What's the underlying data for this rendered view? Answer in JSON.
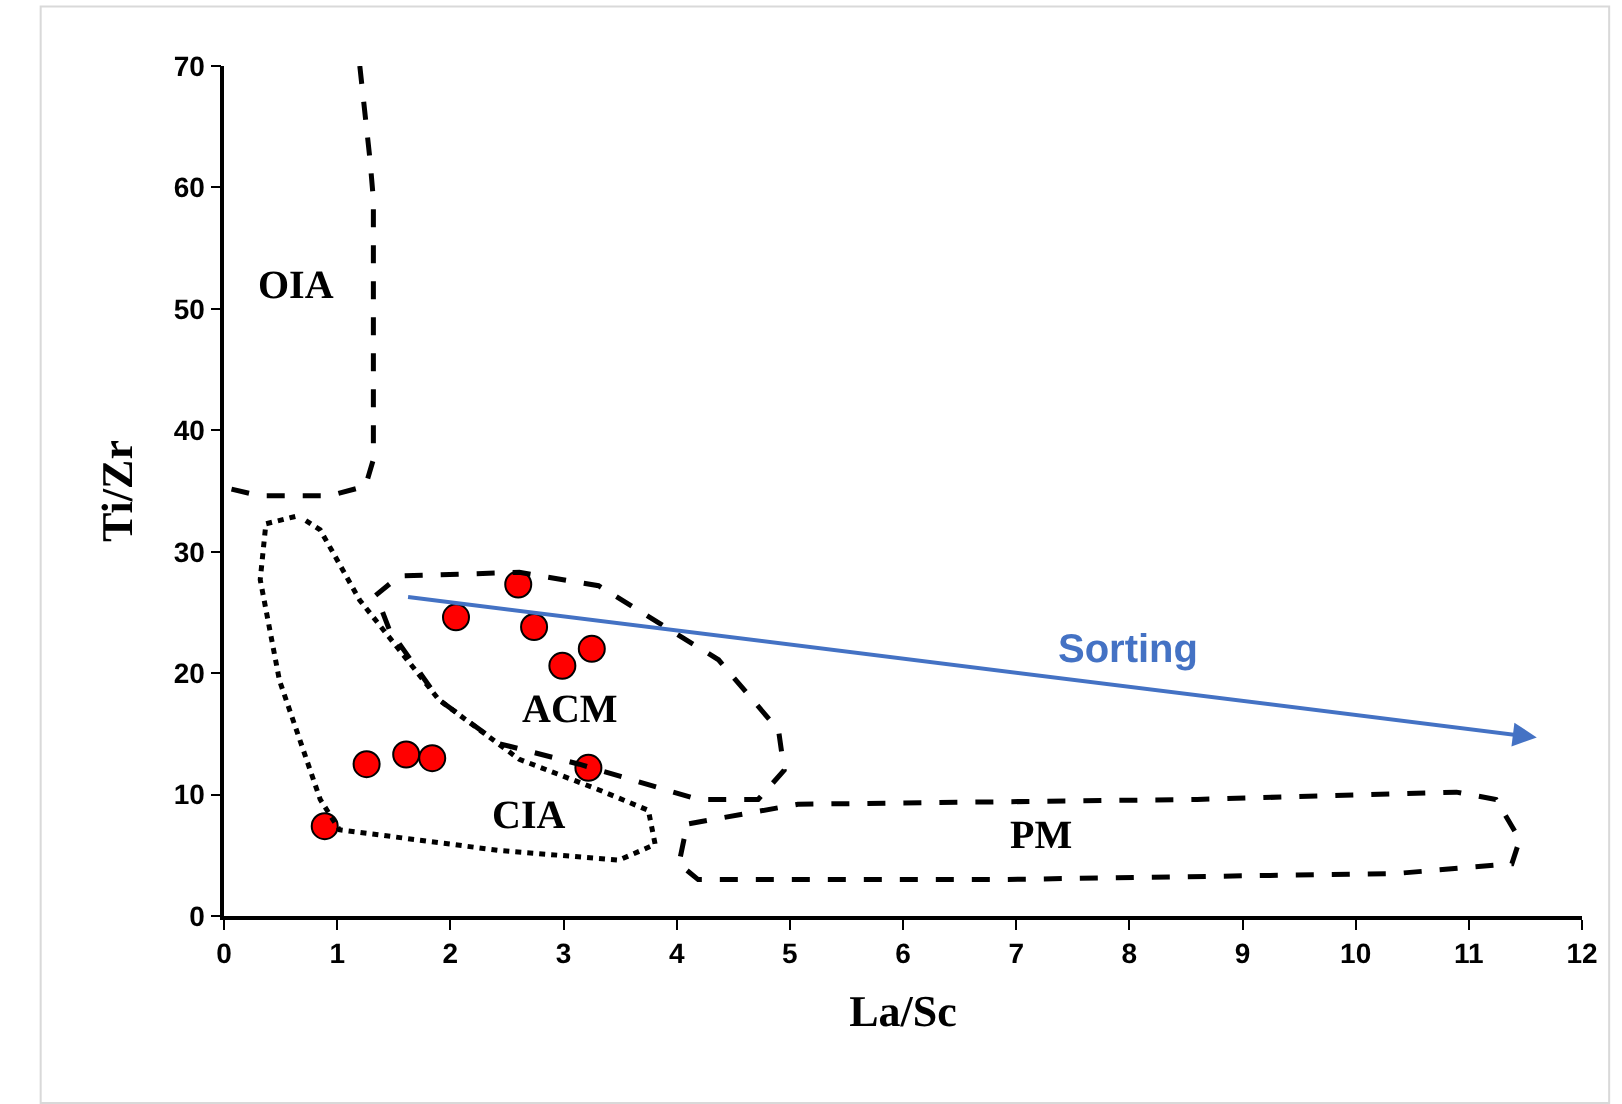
{
  "chart_data": {
    "type": "scatter",
    "xlabel": "La/Sc",
    "ylabel": "Ti/Zr",
    "xlim": [
      0,
      12
    ],
    "ylim": [
      0,
      70
    ],
    "xticks": [
      0,
      1,
      2,
      3,
      4,
      5,
      6,
      7,
      8,
      9,
      10,
      11,
      12
    ],
    "yticks": [
      0,
      10,
      20,
      30,
      40,
      50,
      60,
      70
    ],
    "grid": false,
    "marker": "circle",
    "series": [
      {
        "color": "#ff0000",
        "x": [
          0.89,
          1.26,
          1.61,
          1.84,
          2.05,
          2.6,
          2.74,
          2.99,
          3.25,
          3.22
        ],
        "values": [
          7.4,
          12.5,
          13.3,
          13.0,
          24.6,
          27.3,
          23.8,
          20.6,
          22.0,
          12.2
        ]
      },
      {
        "type": "line",
        "color": "#000000",
        "line_style": "dashed",
        "marker": "none",
        "x": [
          1.2,
          1.29,
          1.32,
          1.32,
          1.25,
          0.93,
          0.32,
          0
        ],
        "values": [
          70,
          62.3,
          59,
          37.6,
          35.4,
          34.6,
          34.6,
          35.3
        ]
      },
      {
        "type": "line",
        "color": "#000000",
        "line_style": "dotted",
        "marker": "none",
        "x": [
          0.63,
          0.37,
          0.32,
          0.49,
          0.85,
          1.02,
          2.43,
          3.49,
          3.81,
          3.75,
          3.31,
          2.61,
          1.9,
          1.2,
          0.85,
          0.7
        ],
        "values": [
          32.9,
          32.3,
          27.7,
          19.4,
          9.6,
          7.1,
          5.4,
          4.6,
          5.9,
          8.7,
          10.4,
          12.9,
          17.8,
          26.0,
          31.8,
          32.7
        ]
      },
      {
        "type": "line",
        "color": "#000000",
        "line_style": "dashed",
        "marker": "none",
        "x": [
          1.34,
          1.55,
          2.61,
          3.31,
          4.37,
          4.9,
          4.95,
          4.72,
          4.19,
          3.14,
          2.43,
          1.9,
          1.46,
          1.37
        ],
        "values": [
          26.4,
          28.0,
          28.3,
          27.2,
          21.1,
          15.3,
          12.0,
          9.6,
          9.6,
          12.5,
          14.2,
          17.8,
          23.6,
          25.8
        ]
      },
      {
        "type": "line",
        "color": "#000000",
        "line_style": "dashed",
        "marker": "none",
        "x": [
          4.11,
          5.07,
          8.6,
          10.89,
          11.24,
          11.45,
          11.38,
          10.36,
          6.84,
          4.19,
          4.02,
          4.08
        ],
        "values": [
          7.6,
          9.2,
          9.6,
          10.2,
          9.6,
          6.3,
          4.3,
          3.5,
          3.0,
          3.0,
          4.3,
          7.0
        ]
      }
    ],
    "annotations": [
      "OIA",
      "ACM",
      "CIA",
      "PM",
      "Sorting"
    ]
  }
}
